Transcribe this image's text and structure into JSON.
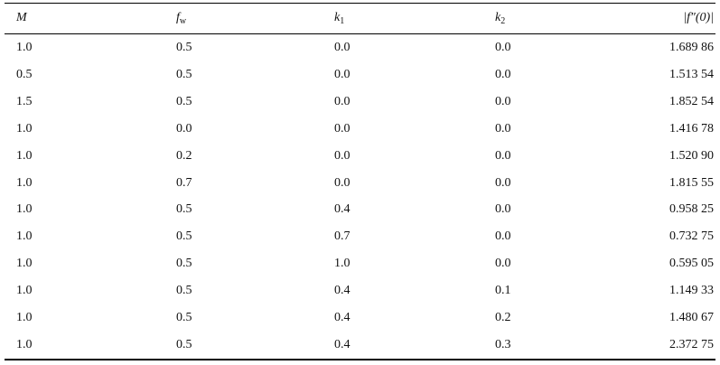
{
  "table": {
    "header": [
      {
        "text": "M"
      },
      {
        "text": "f",
        "sub": "w"
      },
      {
        "text": "k",
        "sub": "1"
      },
      {
        "text": "k",
        "sub": "2"
      },
      {
        "text": "|f″(0)|"
      }
    ],
    "rows": [
      [
        "1.0",
        "0.5",
        "0.0",
        "0.0",
        "1.689 86"
      ],
      [
        "0.5",
        "0.5",
        "0.0",
        "0.0",
        "1.513 54"
      ],
      [
        "1.5",
        "0.5",
        "0.0",
        "0.0",
        "1.852 54"
      ],
      [
        "1.0",
        "0.0",
        "0.0",
        "0.0",
        "1.416 78"
      ],
      [
        "1.0",
        "0.2",
        "0.0",
        "0.0",
        "1.520 90"
      ],
      [
        "1.0",
        "0.7",
        "0.0",
        "0.0",
        "1.815 55"
      ],
      [
        "1.0",
        "0.5",
        "0.4",
        "0.0",
        "0.958 25"
      ],
      [
        "1.0",
        "0.5",
        "0.7",
        "0.0",
        "0.732 75"
      ],
      [
        "1.0",
        "0.5",
        "1.0",
        "0.0",
        "0.595 05"
      ],
      [
        "1.0",
        "0.5",
        "0.4",
        "0.1",
        "1.149 33"
      ],
      [
        "1.0",
        "0.5",
        "0.4",
        "0.2",
        "1.480 67"
      ],
      [
        "1.0",
        "0.5",
        "0.4",
        "0.3",
        "2.372 75"
      ]
    ]
  }
}
